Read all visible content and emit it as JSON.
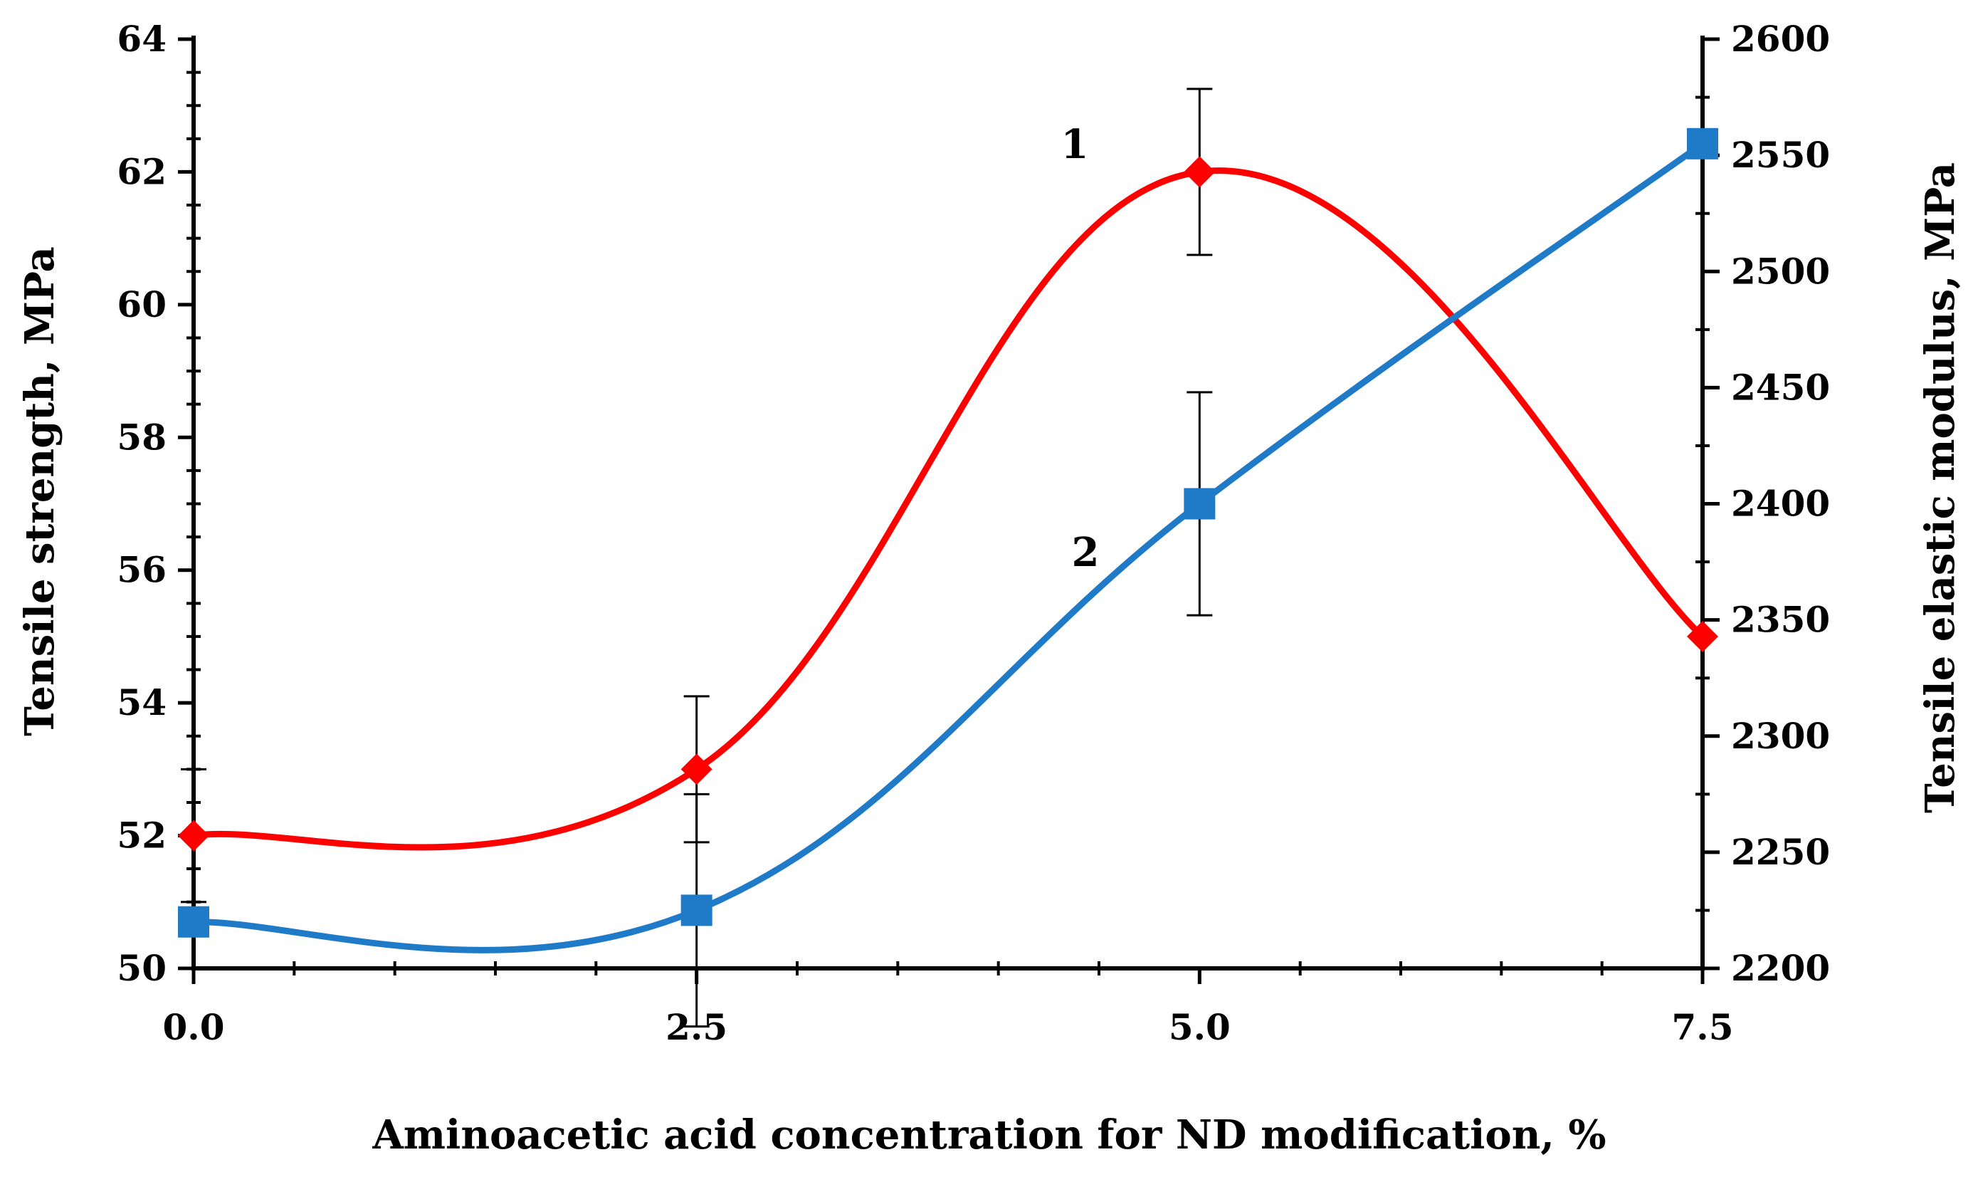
{
  "chart_data": {
    "type": "line",
    "title": "",
    "xlabel": "Aminoacetic acid concentration for ND modification, %",
    "ylabel": "Tensile strength, MPa",
    "y2label": "Tensile elastic modulus, MPa",
    "x_tick_labels": [
      "0.0",
      "2.5",
      "5.0",
      "7.5"
    ],
    "x_ticks": [
      0,
      2.5,
      5,
      7.5
    ],
    "xlim": [
      0,
      7.5
    ],
    "ylim": [
      50,
      64
    ],
    "y_ticks": [
      50,
      52,
      54,
      56,
      58,
      60,
      62,
      64
    ],
    "y_tick_labels": [
      "50",
      "52",
      "54",
      "56",
      "58",
      "60",
      "62",
      "64"
    ],
    "y2lim": [
      2200,
      2600
    ],
    "y2_ticks": [
      2200,
      2250,
      2300,
      2350,
      2400,
      2450,
      2500,
      2550,
      2600
    ],
    "y2_tick_labels": [
      "2200",
      "2250",
      "2300",
      "2350",
      "2400",
      "2450",
      "2500",
      "2550",
      "2600"
    ],
    "grid": false,
    "series": [
      {
        "name": "1",
        "axis": "left",
        "color": "#ff0000",
        "marker": "diamond",
        "x": [
          0,
          2.5,
          5,
          7.5
        ],
        "values": [
          52,
          53,
          62,
          55
        ],
        "error": [
          null,
          1.1,
          1.25,
          null
        ]
      },
      {
        "name": "2",
        "axis": "right",
        "color": "#1f7ac8",
        "marker": "square",
        "x": [
          0,
          2.5,
          5,
          7.5
        ],
        "values": [
          2220,
          2225,
          2400,
          2555
        ],
        "error": [
          null,
          50,
          48,
          null
        ]
      }
    ],
    "extra_error_bars": [
      {
        "axis": "left",
        "x": 0,
        "low": 51,
        "high": 53
      }
    ]
  }
}
